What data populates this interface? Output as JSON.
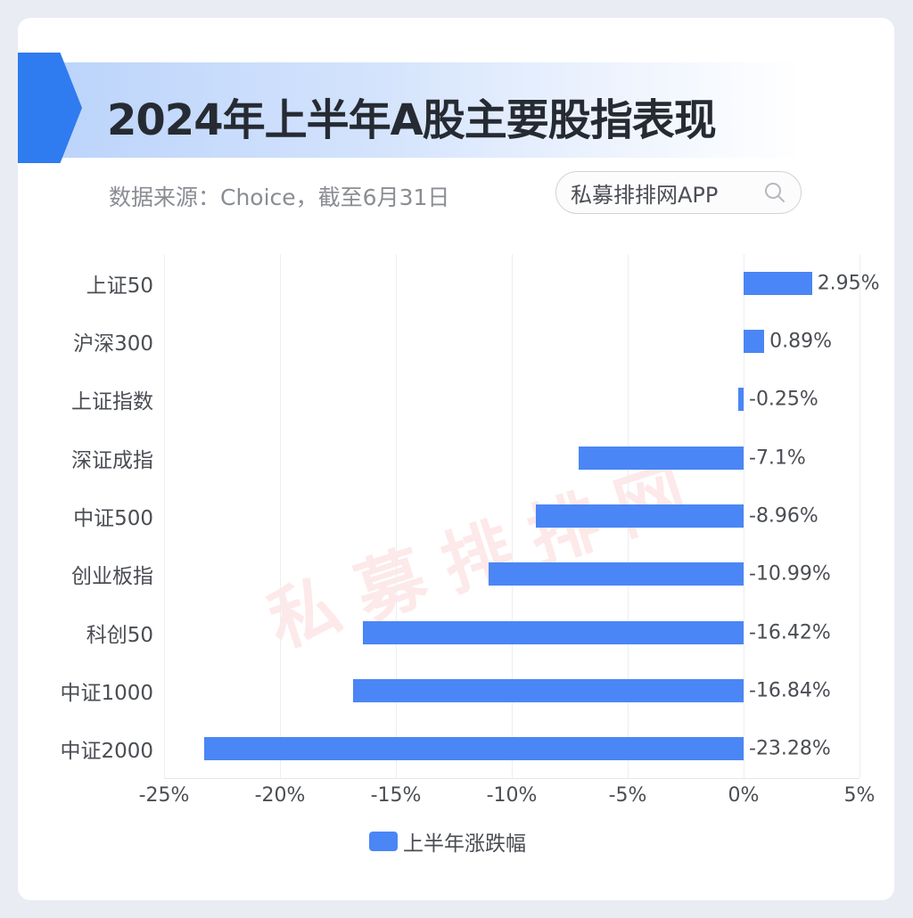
{
  "header": {
    "title": "2024年上半年A股主要股指表现",
    "source": "数据来源：Choice，截至6月31日",
    "search_text": "私募排排网APP",
    "search_icon": "search-icon"
  },
  "watermark": "私募排排网",
  "colors": {
    "bar": "#4a86f5",
    "accent_tab": "#2f7bf0",
    "title_text": "#262b33"
  },
  "chart_data": {
    "type": "bar",
    "orientation": "horizontal",
    "title": "2024年上半年A股主要股指表现",
    "subtitle": "数据来源：Choice，截至6月31日",
    "categories": [
      "上证50",
      "沪深300",
      "上证指数",
      "深证成指",
      "中证500",
      "创业板指",
      "科创50",
      "中证1000",
      "中证2000"
    ],
    "series": [
      {
        "name": "上半年涨跌幅",
        "values": [
          2.95,
          0.89,
          -0.25,
          -7.1,
          -8.96,
          -10.99,
          -16.42,
          -16.84,
          -23.28
        ],
        "labels": [
          "2.95%",
          "0.89%",
          "-0.25%",
          "-7.1%",
          "-8.96%",
          "-10.99%",
          "-16.42%",
          "-16.84%",
          "-23.28%"
        ]
      }
    ],
    "xlabel": "",
    "ylabel": "",
    "xlim": [
      -25,
      5
    ],
    "xticks": [
      "-25%",
      "-20%",
      "-15%",
      "-10%",
      "-5%",
      "0%",
      "5%"
    ],
    "grid": true,
    "legend_position": "bottom"
  },
  "legend": {
    "label": "上半年涨跌幅"
  }
}
